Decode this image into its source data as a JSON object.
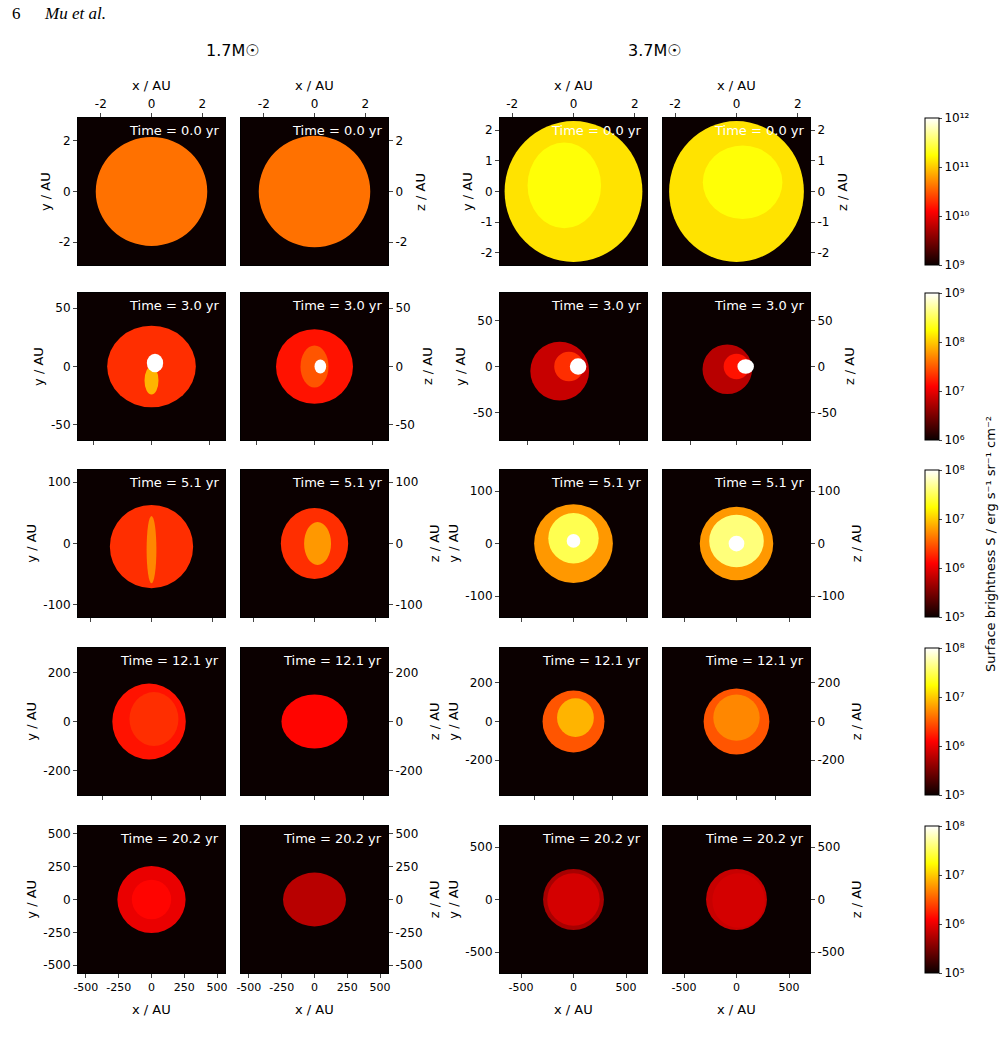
{
  "header": {
    "page": "6",
    "running_head": "Mu et al."
  },
  "columns": [
    "1.7M☉",
    "3.7M☉"
  ],
  "colorbar_title": "Surface brightness S / erg s⁻¹ sr⁻¹ cm⁻²",
  "colorbars": [
    {
      "range": [
        1000000000.0,
        1000000000000.0
      ],
      "log": true,
      "ticks": [
        {
          "value": 1000000000.0,
          "label": "10⁹"
        },
        {
          "value": 10000000000.0,
          "label": "10¹⁰"
        },
        {
          "value": 100000000000.0,
          "label": "10¹¹"
        },
        {
          "value": 1000000000000.0,
          "label": "10¹²"
        }
      ]
    },
    {
      "range": [
        1000000.0,
        1000000000.0
      ],
      "log": true,
      "ticks": [
        {
          "value": 1000000.0,
          "label": "10⁶"
        },
        {
          "value": 10000000.0,
          "label": "10⁷"
        },
        {
          "value": 100000000.0,
          "label": "10⁸"
        },
        {
          "value": 1000000000.0,
          "label": "10⁹"
        }
      ]
    },
    {
      "range": [
        100000.0,
        100000000.0
      ],
      "log": true,
      "ticks": [
        {
          "value": 100000.0,
          "label": "10⁵"
        },
        {
          "value": 1000000.0,
          "label": "10⁶"
        },
        {
          "value": 10000000.0,
          "label": "10⁷"
        },
        {
          "value": 100000000.0,
          "label": "10⁸"
        }
      ]
    },
    {
      "range": [
        100000.0,
        100000000.0
      ],
      "log": true,
      "ticks": [
        {
          "value": 100000.0,
          "label": "10⁵"
        },
        {
          "value": 1000000.0,
          "label": "10⁶"
        },
        {
          "value": 10000000.0,
          "label": "10⁷"
        },
        {
          "value": 100000000.0,
          "label": "10⁸"
        }
      ]
    },
    {
      "range": [
        100000.0,
        100000000.0
      ],
      "log": true,
      "ticks": [
        {
          "value": 100000.0,
          "label": "10⁵"
        },
        {
          "value": 1000000.0,
          "label": "10⁶"
        },
        {
          "value": 10000000.0,
          "label": "10⁷"
        },
        {
          "value": 100000000.0,
          "label": "10⁸"
        }
      ]
    }
  ],
  "chart_data": [
    {
      "type": "heatmap",
      "annotation": "Time = 0.0 yr",
      "xlabel": "x / AU",
      "ylabel": "y / AU",
      "xlim": [
        -2.9,
        2.9
      ],
      "ylim": [
        -2.9,
        2.9
      ],
      "xticks": [
        -2,
        0,
        2
      ],
      "yticks": [
        -2,
        0,
        2
      ],
      "blobs": [
        {
          "x": 0,
          "y": 0,
          "rx": 2.2,
          "ry": 2.15,
          "S": 40000000000.0
        }
      ]
    },
    {
      "type": "heatmap",
      "annotation": "Time = 0.0 yr",
      "xlabel": "x / AU",
      "ylabel": "z / AU",
      "xlim": [
        -2.9,
        2.9
      ],
      "ylim": [
        -2.9,
        2.9
      ],
      "xticks": [
        -2,
        0,
        2
      ],
      "yticks": [
        -2,
        0,
        2
      ],
      "blobs": [
        {
          "x": 0,
          "y": 0,
          "rx": 2.2,
          "ry": 2.2,
          "S": 40000000000.0
        }
      ]
    },
    {
      "type": "heatmap",
      "annotation": "Time = 0.0 yr",
      "xlabel": "x / AU",
      "ylabel": "y / AU",
      "xlim": [
        -2.4,
        2.4
      ],
      "ylim": [
        -2.4,
        2.4
      ],
      "xticks": [
        -2,
        0,
        2
      ],
      "yticks": [
        -2,
        -1,
        0,
        1,
        2
      ],
      "blobs": [
        {
          "x": 0,
          "y": 0,
          "rx": 2.25,
          "ry": 2.3,
          "S": 130000000000.0
        },
        {
          "x": -0.3,
          "y": 0.2,
          "rx": 1.2,
          "ry": 1.4,
          "S": 180000000000.0
        }
      ]
    },
    {
      "type": "heatmap",
      "annotation": "Time = 0.0 yr",
      "xlabel": "x / AU",
      "ylabel": "z / AU",
      "xlim": [
        -2.4,
        2.4
      ],
      "ylim": [
        -2.4,
        2.4
      ],
      "xticks": [
        -2,
        0,
        2
      ],
      "yticks": [
        -2,
        -1,
        0,
        1,
        2
      ],
      "blobs": [
        {
          "x": 0,
          "y": 0,
          "rx": 2.2,
          "ry": 2.3,
          "S": 130000000000.0
        },
        {
          "x": 0.2,
          "y": 0.3,
          "rx": 1.3,
          "ry": 1.2,
          "S": 180000000000.0
        }
      ]
    },
    {
      "type": "heatmap",
      "annotation": "Time = 3.0 yr",
      "ylabel": "y / AU",
      "tick_labels": "y",
      "xlim": [
        -63,
        63
      ],
      "ylim": [
        -63,
        63
      ],
      "xticks": [
        -50,
        0,
        50
      ],
      "yticks": [
        -50,
        0,
        50
      ],
      "blobs": [
        {
          "x": 0,
          "y": 0,
          "rx": 38,
          "ry": 35,
          "S": 20000000.0
        },
        {
          "x": 0,
          "y": -12,
          "rx": 6,
          "ry": 12,
          "S": 80000000.0
        },
        {
          "x": 3,
          "y": 3,
          "rx": 7,
          "ry": 8,
          "S": 1000000000.0
        }
      ]
    },
    {
      "type": "heatmap",
      "annotation": "Time = 3.0 yr",
      "ylabel": "z / AU",
      "tick_labels": "y",
      "xlim": [
        -63,
        63
      ],
      "ylim": [
        -63,
        63
      ],
      "xticks": [
        -50,
        0,
        50
      ],
      "yticks": [
        -50,
        0,
        50
      ],
      "blobs": [
        {
          "x": 0,
          "y": 0,
          "rx": 33,
          "ry": 32,
          "S": 15000000.0
        },
        {
          "x": 0,
          "y": 0,
          "rx": 12,
          "ry": 18,
          "S": 30000000.0
        },
        {
          "x": 5,
          "y": 0,
          "rx": 5,
          "ry": 6,
          "S": 1000000000.0
        }
      ]
    },
    {
      "type": "heatmap",
      "annotation": "Time = 3.0 yr",
      "ylabel": "y / AU",
      "tick_labels": "y",
      "xlim": [
        -80,
        80
      ],
      "ylim": [
        -80,
        80
      ],
      "xticks": [
        -50,
        0,
        50
      ],
      "yticks": [
        -50,
        0,
        50
      ],
      "blobs": [
        {
          "x": -15,
          "y": -5,
          "rx": 32,
          "ry": 32,
          "S": 7000000.0
        },
        {
          "x": -5,
          "y": 0,
          "rx": 16,
          "ry": 16,
          "S": 20000000.0
        },
        {
          "x": 5,
          "y": 0,
          "rx": 9,
          "ry": 9,
          "S": 1000000000.0
        }
      ]
    },
    {
      "type": "heatmap",
      "annotation": "Time = 3.0 yr",
      "ylabel": "z / AU",
      "tick_labels": "y",
      "xlim": [
        -80,
        80
      ],
      "ylim": [
        -80,
        80
      ],
      "xticks": [
        -50,
        0,
        50
      ],
      "yticks": [
        -50,
        0,
        50
      ],
      "blobs": [
        {
          "x": -10,
          "y": -3,
          "rx": 27,
          "ry": 27,
          "S": 6000000.0
        },
        {
          "x": 0,
          "y": 0,
          "rx": 14,
          "ry": 14,
          "S": 15000000.0
        },
        {
          "x": 10,
          "y": 0,
          "rx": 9,
          "ry": 8,
          "S": 1000000000.0
        }
      ]
    },
    {
      "type": "heatmap",
      "annotation": "Time = 5.1 yr",
      "ylabel": "y / AU",
      "tick_labels": "y",
      "xlim": [
        -120,
        120
      ],
      "ylim": [
        -120,
        120
      ],
      "xticks": [
        -100,
        0,
        100
      ],
      "yticks": [
        -100,
        0,
        100
      ],
      "blobs": [
        {
          "x": 0,
          "y": -5,
          "rx": 68,
          "ry": 68,
          "S": 2000000.0
        },
        {
          "x": 0,
          "y": -10,
          "rx": 8,
          "ry": 55,
          "S": 5000000.0
        }
      ]
    },
    {
      "type": "heatmap",
      "annotation": "Time = 5.1 yr",
      "ylabel": "z / AU",
      "tick_labels": "y",
      "xlim": [
        -120,
        120
      ],
      "ylim": [
        -120,
        120
      ],
      "xticks": [
        -100,
        0,
        100
      ],
      "yticks": [
        -100,
        0,
        100
      ],
      "blobs": [
        {
          "x": 0,
          "y": 0,
          "rx": 55,
          "ry": 58,
          "S": 2000000.0
        },
        {
          "x": 5,
          "y": 0,
          "rx": 22,
          "ry": 35,
          "S": 6000000.0
        }
      ]
    },
    {
      "type": "heatmap",
      "annotation": "Time = 5.1 yr",
      "ylabel": "y / AU",
      "tick_labels": "y",
      "xlim": [
        -140,
        140
      ],
      "ylim": [
        -140,
        140
      ],
      "xticks": [
        -100,
        0,
        100
      ],
      "yticks": [
        -100,
        0,
        100
      ],
      "blobs": [
        {
          "x": 0,
          "y": 0,
          "rx": 75,
          "ry": 75,
          "S": 6000000.0
        },
        {
          "x": 0,
          "y": 10,
          "rx": 48,
          "ry": 48,
          "S": 30000000.0
        },
        {
          "x": 0,
          "y": 5,
          "rx": 13,
          "ry": 13,
          "S": 100000000.0
        }
      ]
    },
    {
      "type": "heatmap",
      "annotation": "Time = 5.1 yr",
      "ylabel": "z / AU",
      "tick_labels": "y",
      "xlim": [
        -140,
        140
      ],
      "ylim": [
        -140,
        140
      ],
      "xticks": [
        -100,
        0,
        100
      ],
      "yticks": [
        -100,
        0,
        100
      ],
      "blobs": [
        {
          "x": 0,
          "y": 0,
          "rx": 70,
          "ry": 70,
          "S": 6000000.0
        },
        {
          "x": 0,
          "y": 5,
          "rx": 52,
          "ry": 50,
          "S": 40000000.0
        },
        {
          "x": 0,
          "y": 0,
          "rx": 15,
          "ry": 15,
          "S": 100000000.0
        }
      ]
    },
    {
      "type": "heatmap",
      "annotation": "Time = 12.1 yr",
      "ylabel": "y / AU",
      "tick_labels": "y",
      "xlim": [
        -300,
        300
      ],
      "ylim": [
        -300,
        300
      ],
      "xticks": [
        -200,
        0,
        200
      ],
      "yticks": [
        -200,
        0,
        200
      ],
      "blobs": [
        {
          "x": -10,
          "y": 0,
          "rx": 150,
          "ry": 155,
          "S": 1500000.0
        },
        {
          "x": 10,
          "y": 10,
          "rx": 100,
          "ry": 110,
          "S": 2000000.0
        }
      ]
    },
    {
      "type": "heatmap",
      "annotation": "Time = 12.1 yr",
      "ylabel": "z / AU",
      "tick_labels": "y",
      "xlim": [
        -300,
        300
      ],
      "ylim": [
        -300,
        300
      ],
      "xticks": [
        -200,
        0,
        200
      ],
      "yticks": [
        -200,
        0,
        200
      ],
      "blobs": [
        {
          "x": 0,
          "y": 0,
          "rx": 135,
          "ry": 110,
          "S": 1300000.0
        }
      ]
    },
    {
      "type": "heatmap",
      "annotation": "Time = 12.1 yr",
      "ylabel": "y / AU",
      "tick_labels": "y",
      "xlim": [
        -380,
        380
      ],
      "ylim": [
        -380,
        380
      ],
      "xticks": [
        -200,
        0,
        200
      ],
      "yticks": [
        -200,
        0,
        200
      ],
      "blobs": [
        {
          "x": 0,
          "y": 0,
          "rx": 160,
          "ry": 160,
          "S": 3000000.0
        },
        {
          "x": 10,
          "y": 20,
          "rx": 95,
          "ry": 100,
          "S": 8000000.0
        }
      ]
    },
    {
      "type": "heatmap",
      "annotation": "Time = 12.1 yr",
      "ylabel": "z / AU",
      "tick_labels": "y",
      "xlim": [
        -380,
        380
      ],
      "ylim": [
        -380,
        380
      ],
      "xticks": [
        -200,
        0,
        200
      ],
      "yticks": [
        -200,
        0,
        200
      ],
      "blobs": [
        {
          "x": 0,
          "y": 0,
          "rx": 170,
          "ry": 170,
          "S": 3000000.0
        },
        {
          "x": 0,
          "y": 20,
          "rx": 120,
          "ry": 120,
          "S": 5000000.0
        }
      ]
    },
    {
      "type": "heatmap",
      "annotation": "Time = 20.2 yr",
      "xlabel": "x / AU",
      "ylabel": "y / AU",
      "xlim": [
        -560,
        560
      ],
      "ylim": [
        -560,
        560
      ],
      "xticks": [
        -500,
        -250,
        0,
        250,
        500
      ],
      "yticks": [
        -500,
        -250,
        0,
        250,
        500
      ],
      "blobs": [
        {
          "x": 0,
          "y": 0,
          "rx": 260,
          "ry": 255,
          "S": 1000000.0
        },
        {
          "x": 0,
          "y": 0,
          "rx": 150,
          "ry": 150,
          "S": 1300000.0
        }
      ]
    },
    {
      "type": "heatmap",
      "annotation": "Time = 20.2 yr",
      "xlabel": "x / AU",
      "ylabel": "z / AU",
      "xlim": [
        -560,
        560
      ],
      "ylim": [
        -560,
        560
      ],
      "xticks": [
        -500,
        -250,
        0,
        250,
        500
      ],
      "yticks": [
        -500,
        -250,
        0,
        250,
        500
      ],
      "blobs": [
        {
          "x": 0,
          "y": 0,
          "rx": 240,
          "ry": 205,
          "S": 600000.0
        }
      ]
    },
    {
      "type": "heatmap",
      "annotation": "Time = 20.2 yr",
      "xlabel": "x / AU",
      "ylabel": "y / AU",
      "xlim": [
        -700,
        700
      ],
      "ylim": [
        -700,
        700
      ],
      "xticks": [
        -500,
        0,
        500
      ],
      "yticks": [
        -500,
        0,
        500
      ],
      "blobs": [
        {
          "x": 0,
          "y": 0,
          "rx": 290,
          "ry": 290,
          "S": 500000.0
        },
        {
          "x": 0,
          "y": 0,
          "rx": 250,
          "ry": 250,
          "S": 800000.0
        }
      ]
    },
    {
      "type": "heatmap",
      "annotation": "Time = 20.2 yr",
      "xlabel": "x / AU",
      "ylabel": "z / AU",
      "xlim": [
        -700,
        700
      ],
      "ylim": [
        -700,
        700
      ],
      "xticks": [
        -500,
        0,
        500
      ],
      "yticks": [
        -500,
        0,
        500
      ],
      "blobs": [
        {
          "x": 0,
          "y": 0,
          "rx": 290,
          "ry": 290,
          "S": 700000.0
        },
        {
          "x": 20,
          "y": -10,
          "rx": 250,
          "ry": 260,
          "S": 800000.0
        }
      ]
    }
  ]
}
